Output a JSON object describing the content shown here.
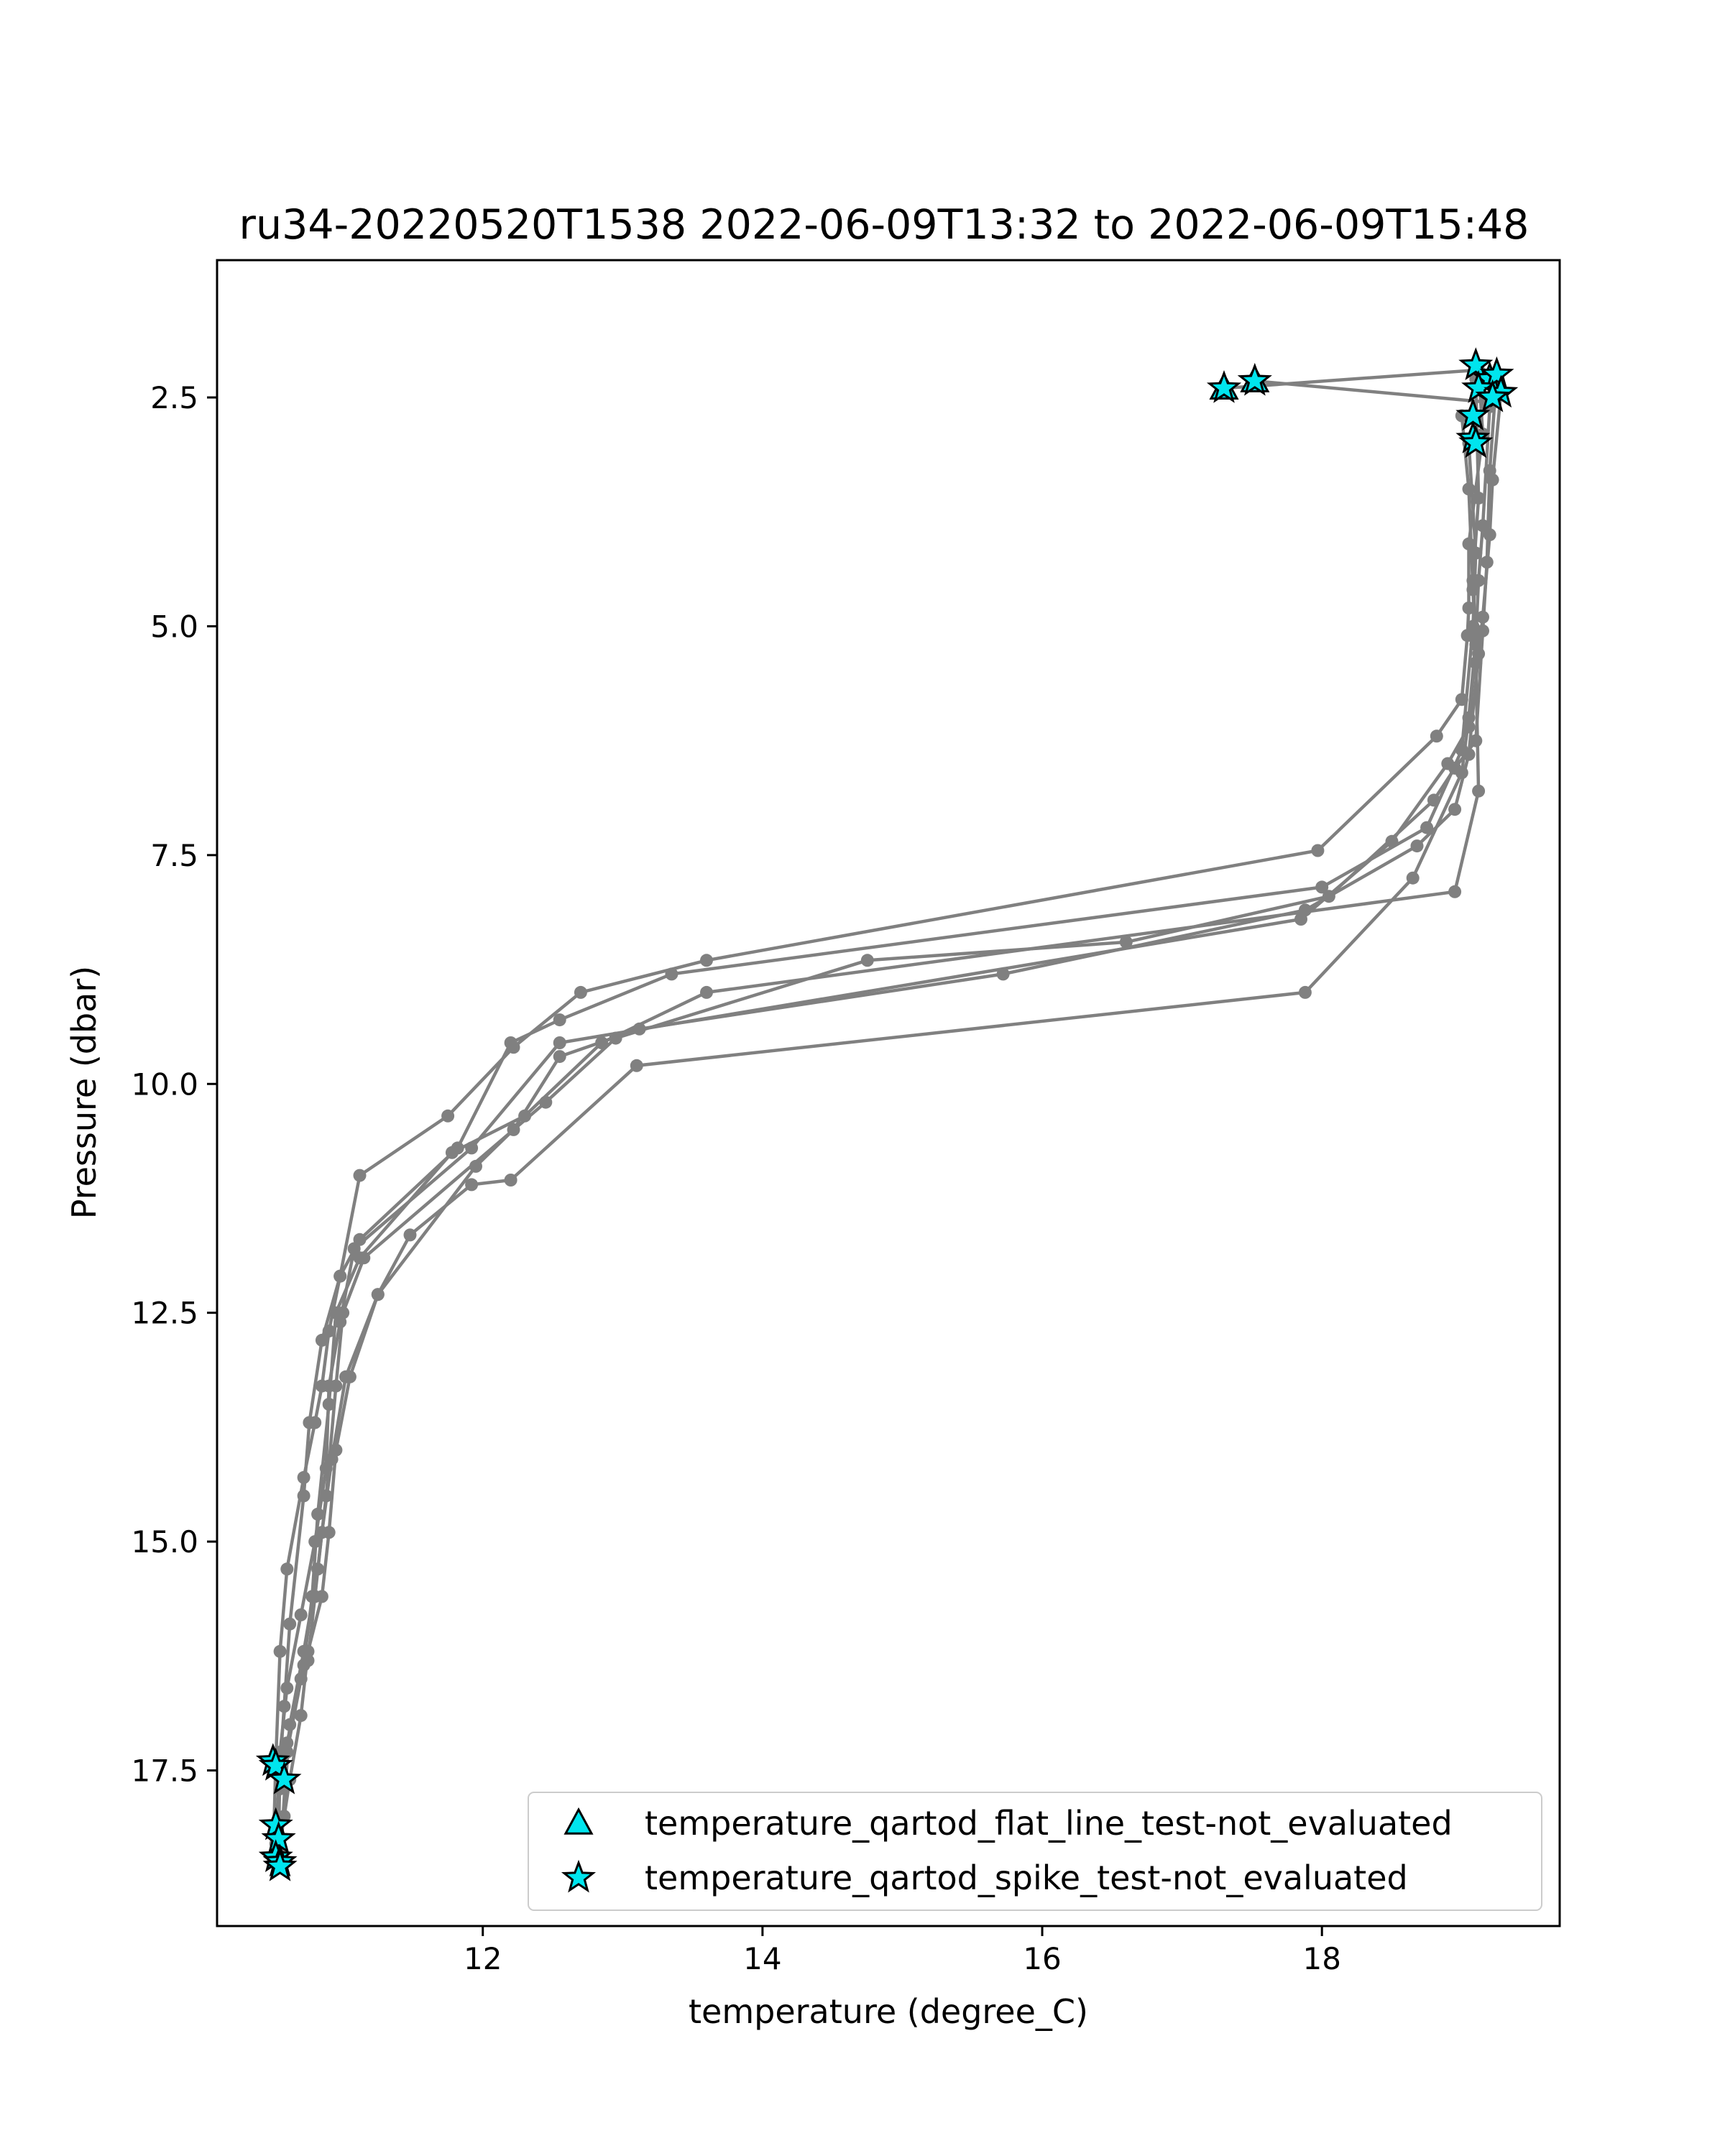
{
  "chart_data": {
    "type": "line",
    "title": "ru34-20220520T1538 2022-06-09T13:32 to 2022-06-09T15:48",
    "xlabel": "temperature (degree_C)",
    "ylabel": "Pressure (dbar)",
    "xlim": [
      10.1,
      19.7
    ],
    "ylim": [
      19.2,
      1.0
    ],
    "y_inverted": true,
    "xticks": [
      12,
      14,
      16,
      18
    ],
    "yticks": [
      2.5,
      5.0,
      7.5,
      10.0,
      12.5,
      15.0,
      17.5
    ],
    "xtick_labels": [
      "12",
      "14",
      "16",
      "18"
    ],
    "ytick_labels": [
      "2.5",
      "5.0",
      "7.5",
      "10.0",
      "12.5",
      "15.0",
      "17.5"
    ],
    "grid": false,
    "legend_position": "lower-right",
    "colors": {
      "profile": "#808080",
      "marker_fill": "#00e5ee",
      "marker_edge": "#000000"
    },
    "legend": [
      {
        "label": "temperature_qartod_flat_line_test-not_evaluated",
        "marker": "triangle"
      },
      {
        "label": "temperature_qartod_spike_test-not_evaluated",
        "marker": "star"
      }
    ],
    "profiles": [
      {
        "x": [
          17.3,
          19.12,
          19.15,
          19.05,
          19.05,
          19.04,
          19.0,
          18.82,
          17.97,
          13.6,
          12.7,
          12.22,
          11.75,
          11.12,
          10.98,
          10.9,
          10.85,
          10.8,
          10.72,
          10.6,
          10.55,
          10.52,
          10.5
        ],
        "y": [
          2.4,
          2.2,
          2.9,
          4.1,
          4.8,
          5.1,
          5.8,
          6.2,
          7.45,
          8.65,
          9.0,
          9.6,
          10.35,
          11.0,
          12.1,
          12.7,
          13.3,
          13.7,
          14.3,
          15.3,
          16.2,
          17.4,
          18.5
        ]
      },
      {
        "x": [
          17.52,
          19.17,
          19.05,
          19.1,
          19.08,
          19.0,
          18.75,
          18.0,
          13.35,
          12.55,
          12.2,
          11.82,
          11.12,
          10.98,
          10.85,
          10.76,
          10.72,
          10.62,
          10.58,
          10.55,
          10.52
        ],
        "y": [
          2.32,
          2.55,
          3.0,
          4.2,
          5.0,
          6.35,
          7.2,
          7.85,
          8.8,
          9.3,
          9.55,
          10.7,
          11.7,
          12.1,
          12.8,
          13.7,
          14.5,
          15.9,
          16.8,
          17.45,
          18.2
        ]
      },
      {
        "x": [
          19.1,
          19.12,
          19.08,
          19.1,
          19.05,
          18.9,
          18.5,
          17.85,
          12.55,
          11.92,
          11.08,
          10.98,
          10.9,
          10.88,
          10.8,
          10.7,
          10.6,
          10.55,
          10.54
        ],
        "y": [
          2.3,
          3.6,
          4.5,
          5.2,
          6.1,
          6.5,
          7.35,
          8.2,
          9.55,
          10.7,
          11.8,
          12.6,
          13.3,
          14.2,
          15.0,
          15.8,
          16.6,
          17.3,
          18.4
        ]
      },
      {
        "x": [
          19.25,
          19.2,
          19.18,
          19.15,
          19.1,
          18.95,
          18.8,
          18.05,
          16.6,
          14.75,
          12.95,
          12.45,
          11.15,
          11.0,
          10.95,
          10.88,
          10.82,
          10.72,
          10.62,
          10.55
        ],
        "y": [
          2.25,
          3.3,
          4.3,
          5.05,
          6.25,
          6.55,
          6.9,
          7.95,
          8.45,
          8.65,
          9.5,
          10.2,
          11.9,
          12.5,
          13.3,
          14.5,
          15.3,
          16.2,
          17.0,
          18.5
        ]
      },
      {
        "x": [
          19.28,
          19.22,
          19.2,
          19.15,
          19.12,
          19.05,
          18.95,
          18.68,
          17.88,
          15.72,
          13.12,
          12.55,
          12.22,
          11.95,
          11.25,
          11.05,
          10.95,
          10.9,
          10.85,
          10.75,
          10.7,
          10.62,
          10.58
        ],
        "y": [
          2.45,
          3.4,
          4.0,
          4.9,
          5.3,
          6.4,
          7.0,
          7.4,
          8.1,
          8.8,
          9.4,
          9.7,
          10.5,
          10.9,
          12.3,
          13.2,
          14.0,
          14.9,
          15.6,
          16.2,
          16.9,
          17.6,
          18.0
        ]
      },
      {
        "x": [
          19.2,
          19.15,
          19.12,
          19.1,
          19.05,
          19.0,
          18.65,
          17.88,
          13.1,
          12.2,
          11.92,
          11.48,
          11.25,
          11.02,
          10.92,
          10.85,
          10.8,
          10.75,
          10.7,
          10.6,
          10.55,
          10.52
        ],
        "y": [
          2.6,
          3.9,
          4.5,
          5.15,
          6.0,
          6.6,
          7.75,
          9.0,
          9.8,
          11.05,
          11.1,
          11.65,
          12.3,
          13.2,
          14.1,
          14.9,
          15.6,
          16.3,
          16.5,
          17.2,
          17.7,
          18.3
        ]
      },
      {
        "x": [
          19.0,
          19.05,
          19.08,
          19.1,
          19.12,
          18.95,
          13.6,
          12.85,
          12.3,
          11.78,
          11.12,
          10.95,
          10.9,
          10.82,
          10.78,
          10.72,
          10.6,
          10.55
        ],
        "y": [
          2.7,
          3.5,
          4.6,
          5.4,
          6.8,
          7.9,
          9.0,
          9.55,
          10.35,
          10.75,
          11.9,
          12.5,
          13.5,
          14.7,
          15.6,
          16.35,
          17.3,
          18.55
        ]
      }
    ],
    "flat_line_not_evaluated": [
      {
        "x": 17.3,
        "y": 2.4
      },
      {
        "x": 17.52,
        "y": 2.32
      }
    ],
    "spike_not_evaluated": [
      {
        "x": 17.3,
        "y": 2.4
      },
      {
        "x": 17.52,
        "y": 2.32
      },
      {
        "x": 19.1,
        "y": 2.15
      },
      {
        "x": 19.2,
        "y": 2.3
      },
      {
        "x": 19.25,
        "y": 2.25
      },
      {
        "x": 19.12,
        "y": 2.4
      },
      {
        "x": 19.28,
        "y": 2.45
      },
      {
        "x": 19.22,
        "y": 2.5
      },
      {
        "x": 19.08,
        "y": 2.7
      },
      {
        "x": 19.08,
        "y": 2.95
      },
      {
        "x": 19.1,
        "y": 3.0
      },
      {
        "x": 10.5,
        "y": 17.4
      },
      {
        "x": 10.52,
        "y": 17.45
      },
      {
        "x": 10.58,
        "y": 17.6
      },
      {
        "x": 10.52,
        "y": 18.1
      },
      {
        "x": 10.54,
        "y": 18.25
      },
      {
        "x": 10.52,
        "y": 18.45
      },
      {
        "x": 10.55,
        "y": 18.5
      },
      {
        "x": 10.55,
        "y": 18.55
      }
    ]
  }
}
